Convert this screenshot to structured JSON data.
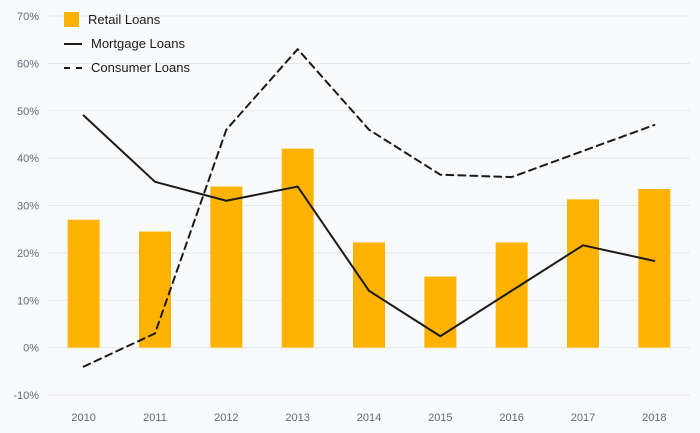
{
  "chart_data": {
    "type": "bar",
    "categories": [
      "2010",
      "2011",
      "2012",
      "2013",
      "2014",
      "2015",
      "2016",
      "2017",
      "2018"
    ],
    "series": [
      {
        "name": "Retail Loans",
        "type": "bar",
        "style": "solid",
        "color": "#FFB300",
        "values": [
          27,
          24.5,
          34,
          42,
          22.2,
          15,
          22.2,
          31.3,
          33.5
        ]
      },
      {
        "name": "Mortgage Loans",
        "type": "line",
        "style": "solid",
        "color": "#1a1a1a",
        "values": [
          49,
          35,
          31,
          34,
          12,
          2.4,
          12,
          21.6,
          18.3
        ]
      },
      {
        "name": "Consumer Loans",
        "type": "line",
        "style": "dashed",
        "color": "#1a1a1a",
        "values": [
          -4,
          3,
          46,
          63,
          46,
          36.5,
          36,
          41.5,
          47
        ]
      }
    ],
    "title": "",
    "xlabel": "",
    "ylabel": "",
    "ylim": [
      -10,
      70
    ],
    "ytick_step": 10,
    "ytick_format": "percent",
    "grid": true,
    "legend_position": "top-left"
  },
  "style": {
    "background": "#f9fafb",
    "grid_color": "#e6e7e9",
    "axis_label_color": "#5f6b76",
    "bar_color": "#FFB300",
    "line_color": "#1a1a1a"
  }
}
